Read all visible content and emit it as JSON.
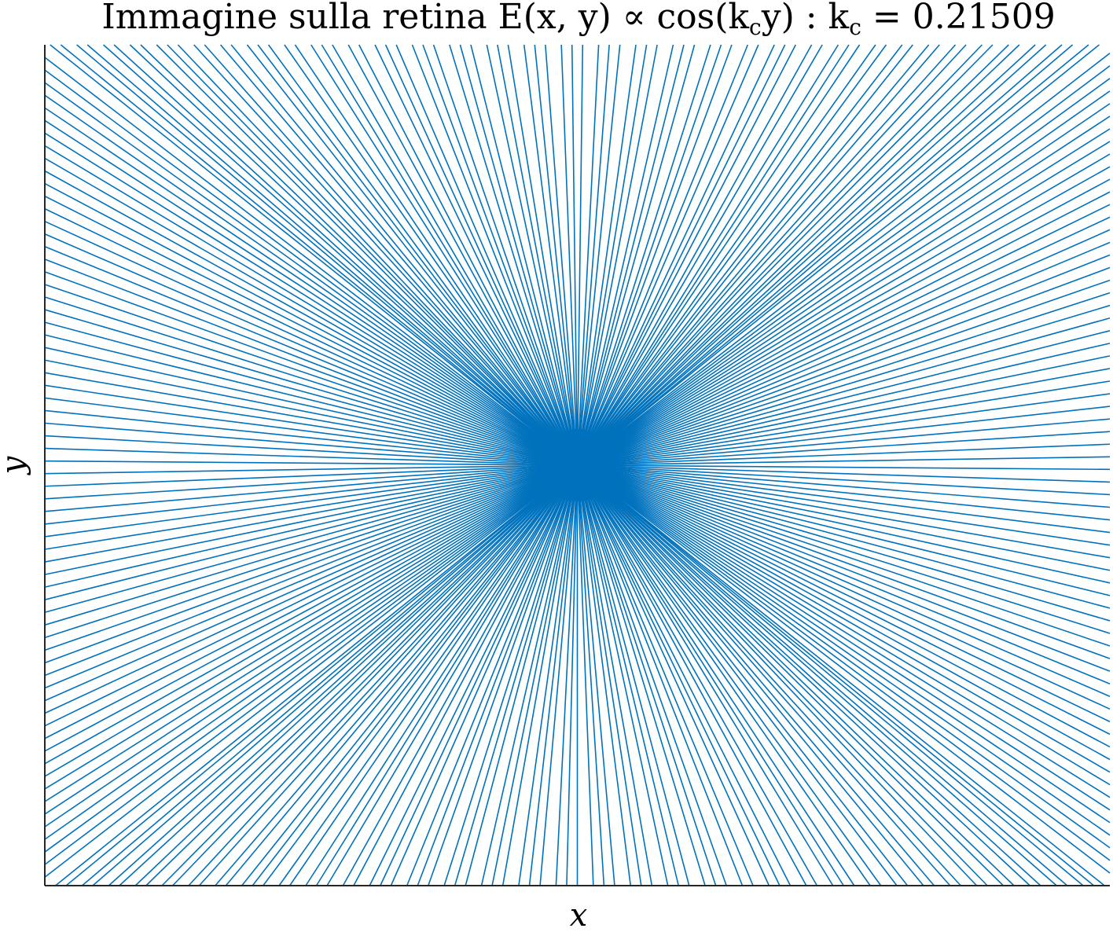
{
  "chart_data": {
    "type": "line",
    "title": "Immagine sulla retina E(x, y) ∝ cos(k",
    "title_sub": "c",
    "title_mid": "y) : k",
    "title_end": " = 0.21509",
    "title_plain": "Immagine sulla retina E(x,y) ∝ cos(k_c y) : k_c = 0.21509",
    "xlabel": "x",
    "ylabel": "y",
    "kc": 0.21509,
    "series_color": "#0072BD",
    "xticks": [],
    "yticks": [],
    "description_center": [
      0,
      0
    ],
    "rays": {
      "top_edge_x": [
        -0.99,
        -0.97,
        -0.94,
        -0.92,
        -0.89,
        -0.87,
        -0.84,
        -0.82,
        -0.79,
        -0.77,
        -0.75,
        -0.72,
        -0.7,
        -0.67,
        -0.65,
        -0.62,
        -0.6,
        -0.58,
        -0.55,
        -0.53,
        -0.5,
        -0.48,
        -0.46,
        -0.43,
        -0.41,
        -0.38,
        -0.36,
        -0.34,
        -0.31,
        -0.29,
        -0.27,
        -0.24,
        -0.22,
        -0.2,
        -0.17,
        -0.15,
        -0.13,
        -0.1,
        -0.08,
        -0.06,
        -0.03,
        -0.01,
        0.01,
        0.04,
        0.06,
        0.08,
        0.11,
        0.13,
        0.15,
        0.18,
        0.2,
        0.22,
        0.25,
        0.27,
        0.29,
        0.32,
        0.34,
        0.37,
        0.39,
        0.41,
        0.44,
        0.46,
        0.49,
        0.51,
        0.53,
        0.56,
        0.58,
        0.61,
        0.63,
        0.66,
        0.68,
        0.71,
        0.73,
        0.76,
        0.78,
        0.81,
        0.83,
        0.86,
        0.88,
        0.91,
        0.93,
        0.96,
        0.98
      ],
      "bottom_edge_x": [
        -0.98,
        -0.96,
        -0.93,
        -0.91,
        -0.88,
        -0.86,
        -0.83,
        -0.81,
        -0.78,
        -0.76,
        -0.73,
        -0.71,
        -0.68,
        -0.66,
        -0.63,
        -0.61,
        -0.59,
        -0.56,
        -0.54,
        -0.51,
        -0.49,
        -0.47,
        -0.44,
        -0.42,
        -0.39,
        -0.37,
        -0.35,
        -0.32,
        -0.3,
        -0.28,
        -0.25,
        -0.23,
        -0.21,
        -0.18,
        -0.16,
        -0.14,
        -0.11,
        -0.09,
        -0.07,
        -0.04,
        -0.02,
        0.0,
        0.03,
        0.05,
        0.07,
        0.1,
        0.12,
        0.14,
        0.17,
        0.19,
        0.21,
        0.24,
        0.26,
        0.28,
        0.31,
        0.33,
        0.36,
        0.38,
        0.4,
        0.43,
        0.45,
        0.48,
        0.5,
        0.52,
        0.55,
        0.57,
        0.6,
        0.62,
        0.65,
        0.67,
        0.7,
        0.72,
        0.75,
        0.77,
        0.8,
        0.82,
        0.85,
        0.87,
        0.9,
        0.92,
        0.95,
        0.97,
        0.99
      ],
      "left_edge_y": [
        -0.98,
        -0.95,
        -0.92,
        -0.89,
        -0.86,
        -0.83,
        -0.8,
        -0.77,
        -0.74,
        -0.71,
        -0.68,
        -0.65,
        -0.62,
        -0.59,
        -0.56,
        -0.53,
        -0.5,
        -0.47,
        -0.44,
        -0.41,
        -0.38,
        -0.35,
        -0.32,
        -0.29,
        -0.26,
        -0.23,
        -0.2,
        -0.17,
        -0.14,
        -0.11,
        -0.08,
        -0.05,
        -0.02,
        0.01,
        0.04,
        0.07,
        0.1,
        0.13,
        0.16,
        0.19,
        0.22,
        0.25,
        0.28,
        0.31,
        0.34,
        0.37,
        0.4,
        0.43,
        0.46,
        0.49,
        0.52,
        0.55,
        0.58,
        0.61,
        0.64,
        0.67,
        0.7,
        0.73,
        0.76,
        0.79,
        0.82,
        0.85,
        0.88,
        0.91,
        0.94,
        0.97
      ],
      "right_edge_y": [
        -0.97,
        -0.94,
        -0.91,
        -0.88,
        -0.85,
        -0.82,
        -0.79,
        -0.76,
        -0.73,
        -0.7,
        -0.67,
        -0.64,
        -0.61,
        -0.58,
        -0.55,
        -0.52,
        -0.49,
        -0.46,
        -0.43,
        -0.4,
        -0.37,
        -0.34,
        -0.31,
        -0.28,
        -0.25,
        -0.22,
        -0.19,
        -0.16,
        -0.13,
        -0.1,
        -0.07,
        -0.04,
        -0.01,
        0.02,
        0.05,
        0.08,
        0.11,
        0.14,
        0.17,
        0.2,
        0.23,
        0.26,
        0.29,
        0.32,
        0.35,
        0.38,
        0.41,
        0.44,
        0.47,
        0.5,
        0.53,
        0.56,
        0.59,
        0.62,
        0.65,
        0.68,
        0.71,
        0.74,
        0.77,
        0.8,
        0.83,
        0.86,
        0.89,
        0.92,
        0.95,
        0.98
      ]
    },
    "xlim": [
      -1,
      1
    ],
    "ylim": [
      -1,
      1
    ],
    "grid": false,
    "legend": "none"
  }
}
